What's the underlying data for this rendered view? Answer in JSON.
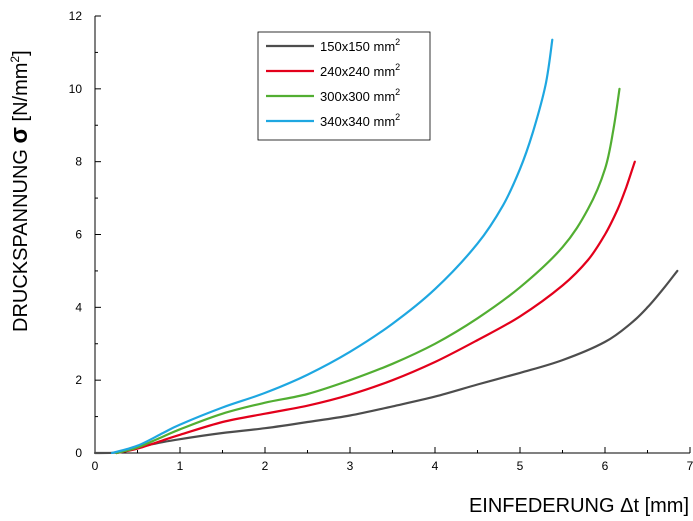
{
  "chart_data": {
    "type": "line",
    "xlabel": "EINFEDERUNG Δt [mm]",
    "ylabel": {
      "main": "DRUCKSPANNUNG ",
      "sigma": "σ",
      "unit_open": " [N/mm",
      "unit_sup": "2",
      "unit_close": "]"
    },
    "xlim": [
      0,
      7
    ],
    "ylim": [
      0,
      12
    ],
    "xticks": [
      0,
      1,
      2,
      3,
      4,
      5,
      6,
      7
    ],
    "yticks": [
      0,
      2,
      4,
      6,
      8,
      10,
      12
    ],
    "legend_position": "top-center",
    "grid": false,
    "series": [
      {
        "name": "150x150 mm",
        "name_sup": "2",
        "color": "#4d4d4d",
        "points": [
          [
            0,
            0
          ],
          [
            0.3,
            0.02
          ],
          [
            0.5,
            0.15
          ],
          [
            0.8,
            0.3
          ],
          [
            1.0,
            0.38
          ],
          [
            1.5,
            0.55
          ],
          [
            2.0,
            0.68
          ],
          [
            2.5,
            0.85
          ],
          [
            3.0,
            1.03
          ],
          [
            3.5,
            1.28
          ],
          [
            4.0,
            1.55
          ],
          [
            4.5,
            1.88
          ],
          [
            5.0,
            2.2
          ],
          [
            5.5,
            2.55
          ],
          [
            6.0,
            3.05
          ],
          [
            6.3,
            3.55
          ],
          [
            6.5,
            4.0
          ],
          [
            6.7,
            4.55
          ],
          [
            6.85,
            5.0
          ]
        ]
      },
      {
        "name": "240x240 mm",
        "name_sup": "2",
        "color": "#e3001b",
        "points": [
          [
            0.25,
            0
          ],
          [
            0.5,
            0.12
          ],
          [
            0.8,
            0.35
          ],
          [
            1.0,
            0.5
          ],
          [
            1.5,
            0.85
          ],
          [
            2.0,
            1.08
          ],
          [
            2.5,
            1.3
          ],
          [
            3.0,
            1.6
          ],
          [
            3.5,
            2.0
          ],
          [
            4.0,
            2.5
          ],
          [
            4.5,
            3.1
          ],
          [
            5.0,
            3.75
          ],
          [
            5.5,
            4.6
          ],
          [
            5.8,
            5.3
          ],
          [
            6.0,
            6.0
          ],
          [
            6.15,
            6.7
          ],
          [
            6.25,
            7.3
          ],
          [
            6.35,
            8.0
          ]
        ]
      },
      {
        "name": "300x300 mm",
        "name_sup": "2",
        "color": "#52ae32",
        "points": [
          [
            0.25,
            0
          ],
          [
            0.5,
            0.15
          ],
          [
            0.8,
            0.45
          ],
          [
            1.0,
            0.65
          ],
          [
            1.5,
            1.08
          ],
          [
            2.0,
            1.38
          ],
          [
            2.5,
            1.62
          ],
          [
            3.0,
            2.0
          ],
          [
            3.5,
            2.45
          ],
          [
            4.0,
            3.0
          ],
          [
            4.5,
            3.7
          ],
          [
            5.0,
            4.55
          ],
          [
            5.5,
            5.65
          ],
          [
            5.8,
            6.7
          ],
          [
            6.0,
            7.8
          ],
          [
            6.1,
            8.9
          ],
          [
            6.17,
            10.0
          ]
        ]
      },
      {
        "name": "340x340 mm",
        "name_sup": "2",
        "color": "#1ea7e1",
        "points": [
          [
            0.2,
            0
          ],
          [
            0.5,
            0.2
          ],
          [
            0.8,
            0.55
          ],
          [
            1.0,
            0.78
          ],
          [
            1.5,
            1.25
          ],
          [
            2.0,
            1.65
          ],
          [
            2.5,
            2.15
          ],
          [
            3.0,
            2.78
          ],
          [
            3.5,
            3.55
          ],
          [
            4.0,
            4.5
          ],
          [
            4.5,
            5.75
          ],
          [
            4.8,
            6.8
          ],
          [
            5.0,
            7.8
          ],
          [
            5.15,
            8.8
          ],
          [
            5.3,
            10.1
          ],
          [
            5.38,
            11.35
          ]
        ]
      }
    ]
  }
}
